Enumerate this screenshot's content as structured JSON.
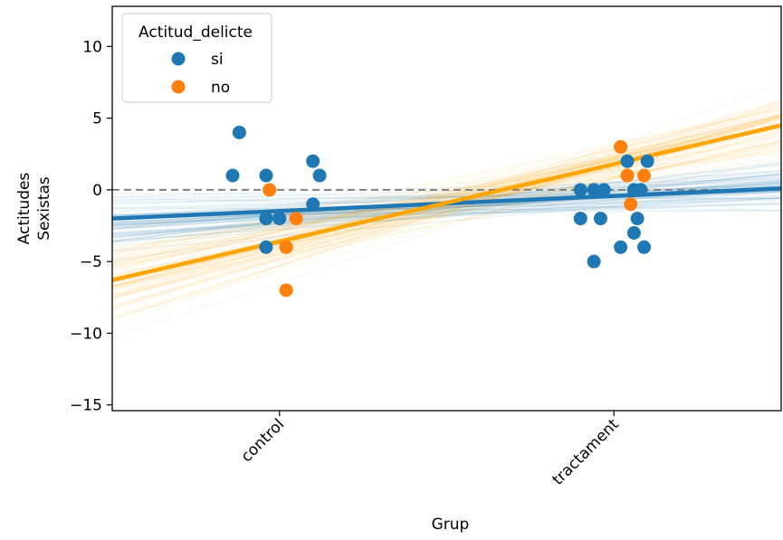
{
  "chart_data": {
    "type": "scatter",
    "xlabel": "Grup",
    "ylabel": [
      "Actitudes",
      "Sexistas"
    ],
    "categories": [
      "control",
      "tractament"
    ],
    "ylim": [
      -15.4,
      12.8
    ],
    "yticks": [
      10,
      5,
      0,
      -5,
      -10,
      -15
    ],
    "ytick_labels": [
      "10",
      "5",
      "0",
      "−5",
      "−10",
      "−15"
    ],
    "legend": {
      "title": "Actitud_delicte",
      "placement": "top-left",
      "entries": [
        "si",
        "no"
      ]
    },
    "reference_line": {
      "y": 0,
      "style": "dashed",
      "color": "#808080"
    },
    "series": [
      {
        "name": "si",
        "color": "#1f77b4",
        "points": [
          {
            "x": -0.14,
            "y": 1
          },
          {
            "x": -0.12,
            "y": 4
          },
          {
            "x": -0.04,
            "y": 1
          },
          {
            "x": 0.1,
            "y": 2
          },
          {
            "x": 0.12,
            "y": 1
          },
          {
            "x": 0.1,
            "y": -1
          },
          {
            "x": -0.04,
            "y": -2
          },
          {
            "x": 0.0,
            "y": -2
          },
          {
            "x": -0.04,
            "y": -4
          },
          {
            "x": 0.9,
            "y": 0
          },
          {
            "x": 0.94,
            "y": 0
          },
          {
            "x": 0.97,
            "y": 0
          },
          {
            "x": 0.9,
            "y": -2
          },
          {
            "x": 0.96,
            "y": -2
          },
          {
            "x": 1.04,
            "y": 2
          },
          {
            "x": 1.1,
            "y": 2
          },
          {
            "x": 1.06,
            "y": 0
          },
          {
            "x": 1.08,
            "y": 0
          },
          {
            "x": 1.07,
            "y": -2
          },
          {
            "x": 1.06,
            "y": -3
          },
          {
            "x": 1.02,
            "y": -4
          },
          {
            "x": 1.09,
            "y": -4
          },
          {
            "x": 0.94,
            "y": -5
          }
        ]
      },
      {
        "name": "no",
        "color": "#ff7f0e",
        "points": [
          {
            "x": -0.03,
            "y": 0
          },
          {
            "x": 0.05,
            "y": -2
          },
          {
            "x": 0.02,
            "y": -4
          },
          {
            "x": 0.02,
            "y": -7
          },
          {
            "x": 1.02,
            "y": 3
          },
          {
            "x": 1.04,
            "y": 1
          },
          {
            "x": 1.09,
            "y": 1
          },
          {
            "x": 1.05,
            "y": -1
          }
        ]
      }
    ],
    "regression_lines": [
      {
        "series": "si",
        "color": "#1f77b4",
        "x": [
          -0.5,
          1.5
        ],
        "y": [
          -2.0,
          0.1
        ]
      },
      {
        "series": "no",
        "color": "#ffa500",
        "x": [
          -0.5,
          1.5
        ],
        "y": [
          -6.3,
          4.5
        ]
      }
    ],
    "posterior_lines": [
      {
        "series": "si",
        "color": "#1f77b4",
        "count": 70,
        "y_start_center": -2.0,
        "y_start_spread": 2.5,
        "y_end_center": 0.1,
        "y_end_spread": 2.5
      },
      {
        "series": "no",
        "color": "#ffa500",
        "count": 70,
        "y_start_center": -6.3,
        "y_start_spread": 3.6,
        "y_end_center": 4.5,
        "y_end_spread": 3.4
      }
    ]
  }
}
